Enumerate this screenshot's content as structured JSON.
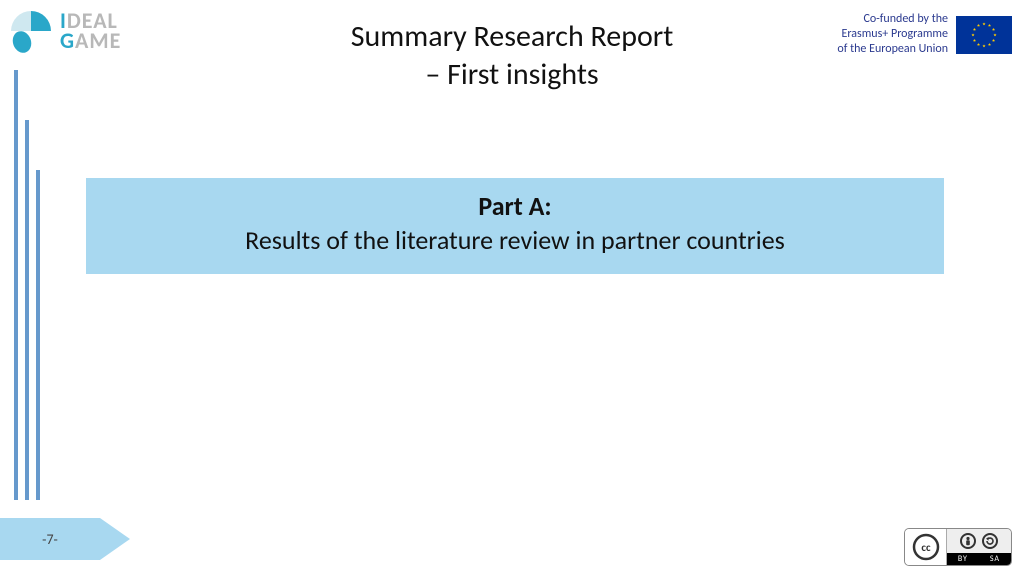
{
  "logo": {
    "line1_accent": "I",
    "line1_rest": "DEAL",
    "line2_accent": "G",
    "line2_rest": "AME",
    "accent_color": "#2aa7c9",
    "rest_color": "#b8b8b8"
  },
  "title": {
    "line1": "Summary Research Report",
    "line2": "– First insights"
  },
  "eu": {
    "line1": "Co-funded by the",
    "line2": "Erasmus+ Programme",
    "line3": "of the European Union",
    "text_color": "#2b3a8f",
    "flag_bg": "#003399",
    "star_color": "#ffcc00"
  },
  "callout": {
    "part_label": "Part A:",
    "description": "Results of the literature review in partner countries",
    "bg_color": "#a8d8f0"
  },
  "decor": {
    "vbar_color": "#6699cc",
    "arrow_fill": "#a8d8f0"
  },
  "page": {
    "number_text": "-7-"
  },
  "cc": {
    "label_by": "BY",
    "label_sa": "SA"
  }
}
